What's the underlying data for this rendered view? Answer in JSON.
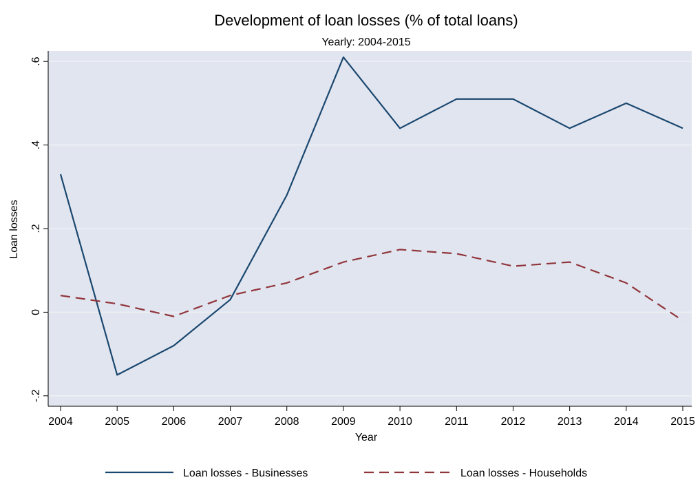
{
  "chart_data": {
    "type": "line",
    "title": "Development of loan losses (% of total loans)",
    "subtitle": "Yearly: 2004-2015",
    "xlabel": "Year",
    "ylabel": "Loan losses",
    "x": [
      2004,
      2005,
      2006,
      2007,
      2008,
      2009,
      2010,
      2011,
      2012,
      2013,
      2014,
      2015
    ],
    "x_tick_labels": [
      "2004",
      "2005",
      "2006",
      "2007",
      "2008",
      "2009",
      "2010",
      "2011",
      "2012",
      "2013",
      "2014",
      "2015"
    ],
    "y_ticks": [
      -0.2,
      0,
      0.2,
      0.4,
      0.6
    ],
    "y_tick_labels": [
      "-.2",
      "0",
      ".2",
      ".4",
      ".6"
    ],
    "ylim": [
      -0.2,
      0.6
    ],
    "grid": true,
    "legend_position": "bottom",
    "series": [
      {
        "name": "Loan losses - Businesses",
        "color": "#1a476f",
        "dash": "solid",
        "values": [
          0.33,
          -0.15,
          -0.08,
          0.03,
          0.28,
          0.61,
          0.44,
          0.51,
          0.51,
          0.44,
          0.5,
          0.44
        ]
      },
      {
        "name": "Loan losses - Households",
        "color": "#90353b",
        "dash": "dashed",
        "values": [
          0.04,
          0.02,
          -0.01,
          0.04,
          0.07,
          0.12,
          0.15,
          0.14,
          0.11,
          0.12,
          0.07,
          -0.02
        ]
      }
    ],
    "colors": {
      "plot_background": "#e1e5ef",
      "grid": "#eef0f5"
    }
  }
}
